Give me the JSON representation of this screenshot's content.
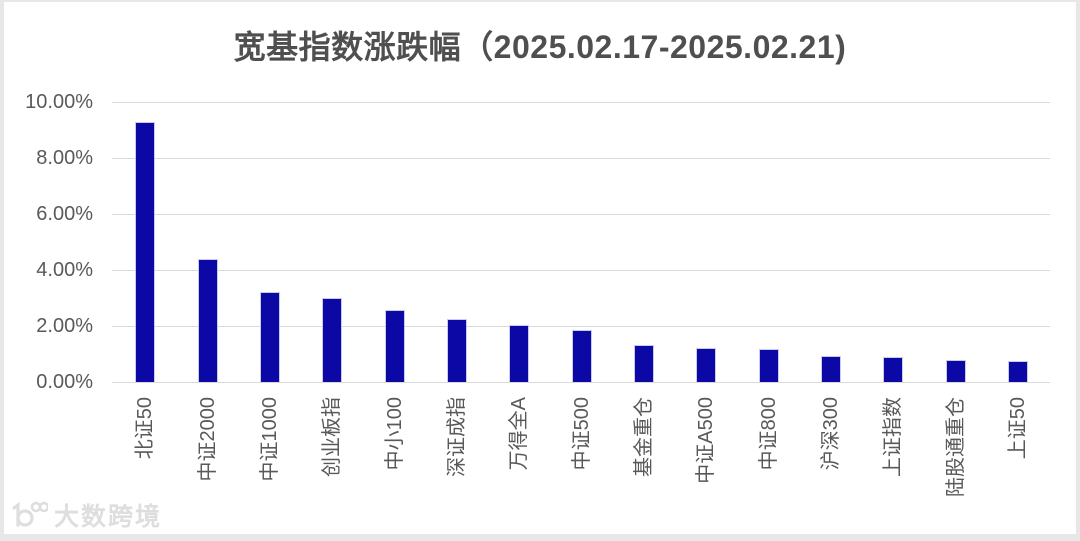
{
  "title": "宽基指数涨跌幅（2025.02.17-2025.02.21)",
  "watermark": {
    "logo": "10100-logo",
    "text": "大数跨境"
  },
  "chart_data": {
    "type": "bar",
    "title": "宽基指数涨跌幅（2025.02.17-2025.02.21)",
    "categories": [
      "北证50",
      "中证2000",
      "中证1000",
      "创业板指",
      "中小100",
      "深证成指",
      "万得全A",
      "中证500",
      "基金重仓",
      "中证A500",
      "中证800",
      "沪深300",
      "上证指数",
      "陆股通重仓",
      "上证50"
    ],
    "values": [
      9.28,
      4.39,
      3.21,
      3.0,
      2.57,
      2.25,
      2.05,
      1.86,
      1.32,
      1.2,
      1.17,
      0.94,
      0.89,
      0.79,
      0.76
    ],
    "unit": "%",
    "xlabel": "",
    "ylabel": "",
    "ylim": [
      0,
      10
    ],
    "ytick_step": 2,
    "ytick_labels_top_to_bottom": [
      "10.00%",
      "8.00%",
      "6.00%",
      "4.00%",
      "2.00%",
      "0.00%"
    ],
    "grid": true,
    "legend": "none",
    "x_labels_rotated_degrees": 90,
    "colors": {
      "bar": "#0B08A5",
      "bar_border": "#c9cce8",
      "gridline": "#d9d9d9",
      "axis_text": "#595959",
      "title_text": "#4f4f4f"
    }
  }
}
